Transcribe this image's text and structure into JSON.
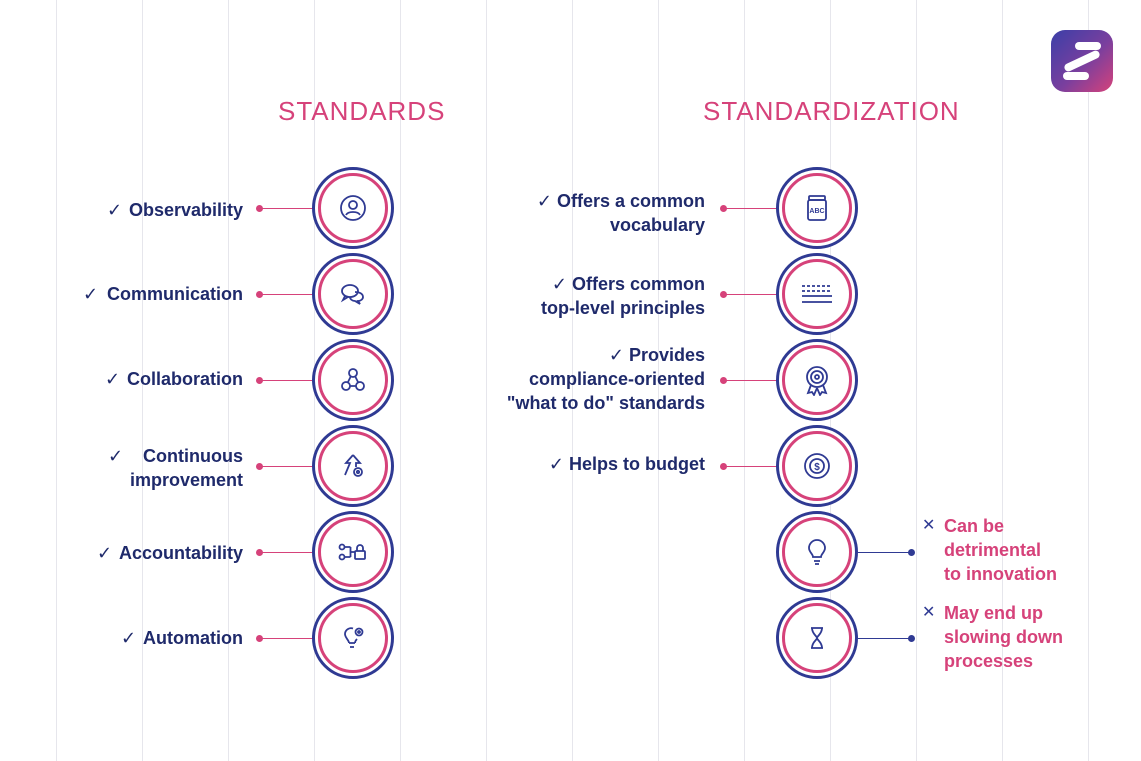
{
  "colors": {
    "accent": "#d6427a",
    "navy": "#2f3a93",
    "text": "#1f2a6b",
    "grid": "#e6e6ec"
  },
  "standards": {
    "title": "STANDARDS",
    "items": [
      {
        "lines": [
          "Observability"
        ],
        "icon": "user-circle-icon"
      },
      {
        "lines": [
          "Communication"
        ],
        "icon": "chat-bubbles-icon"
      },
      {
        "lines": [
          "Collaboration"
        ],
        "icon": "network-nodes-icon"
      },
      {
        "lines": [
          "Continuous",
          "improvement"
        ],
        "icon": "arrow-up-gear-icon"
      },
      {
        "lines": [
          "Accountability"
        ],
        "icon": "workflow-lock-icon"
      },
      {
        "lines": [
          "Automation"
        ],
        "icon": "lightbulb-gear-icon"
      }
    ]
  },
  "standardization": {
    "title": "STANDARDIZATION",
    "pros": [
      {
        "lines": [
          "Offers a common",
          "vocabulary"
        ],
        "icon": "abc-jar-icon",
        "icon_text": "ABC"
      },
      {
        "lines": [
          "Offers common",
          "top-level principles"
        ],
        "icon": "lines-icon"
      },
      {
        "lines": [
          "Provides",
          "compliance-oriented",
          "\"what to do\" standards"
        ],
        "icon": "award-badge-icon"
      },
      {
        "lines": [
          "Helps to budget"
        ],
        "icon": "dollar-target-icon"
      }
    ],
    "cons": [
      {
        "lines": [
          "Can be",
          "detrimental",
          "to innovation"
        ],
        "icon": "lightbulb-icon"
      },
      {
        "lines": [
          "May end up",
          "slowing down",
          "processes"
        ],
        "icon": "hourglass-icon"
      }
    ]
  },
  "marks": {
    "check": "✓",
    "cross": "✕"
  }
}
